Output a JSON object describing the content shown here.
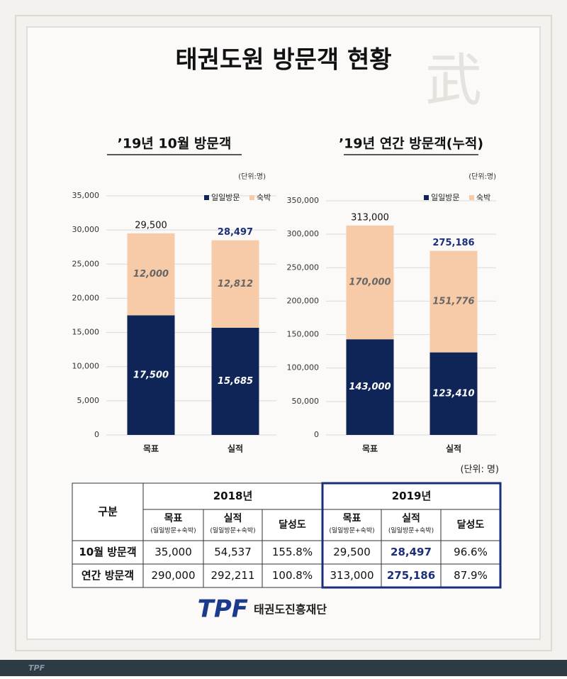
{
  "title": "태권도원 방문객 현황",
  "chart_data": [
    {
      "type": "bar",
      "stacked": true,
      "title": "’19년 10월 방문객",
      "unit": "(단위:명)",
      "categories": [
        "목표",
        "실적"
      ],
      "series": [
        {
          "name": "일일방문",
          "color": "#0f2557",
          "values": [
            17500,
            15685
          ],
          "value_labels": [
            "17,500",
            "15,685"
          ]
        },
        {
          "name": "숙박",
          "color": "#f7caa8",
          "values": [
            12000,
            12812
          ],
          "value_labels": [
            "12,000",
            "12,812"
          ]
        }
      ],
      "totals": [
        29500,
        28497
      ],
      "total_labels": [
        "29,500",
        "28,497"
      ],
      "ylim": [
        0,
        35000
      ],
      "yticks": [
        0,
        {
          "value": 5000,
          "label": "5,000"
        },
        {
          "value": 10000,
          "label": "10,000"
        },
        {
          "value": 15000,
          "label": "15,000"
        },
        {
          "value": 20000,
          "label": "20,000"
        },
        {
          "value": 25000,
          "label": "25,000"
        },
        {
          "value": 30000,
          "label": "30,000"
        },
        {
          "value": 35000,
          "label": "35,000"
        }
      ],
      "grid": true,
      "legend": "top-right"
    },
    {
      "type": "bar",
      "stacked": true,
      "title": "’19년 연간 방문객(누적)",
      "unit": "(단위:명)",
      "categories": [
        "목표",
        "실적"
      ],
      "series": [
        {
          "name": "일일방문",
          "color": "#0f2557",
          "values": [
            143000,
            123410
          ],
          "value_labels": [
            "143,000",
            "123,410"
          ]
        },
        {
          "name": "숙박",
          "color": "#f7caa8",
          "values": [
            170000,
            151776
          ],
          "value_labels": [
            "170,000",
            "151,776"
          ]
        }
      ],
      "totals": [
        313000,
        275186
      ],
      "total_labels": [
        "313,000",
        "275,186"
      ],
      "ylim": [
        0,
        350000
      ],
      "yticks": [
        0,
        {
          "value": 50000,
          "label": "50,000"
        },
        {
          "value": 100000,
          "label": "100,000"
        },
        {
          "value": 150000,
          "label": "150,000"
        },
        {
          "value": 200000,
          "label": "200,000"
        },
        {
          "value": 250000,
          "label": "250,000"
        },
        {
          "value": 300000,
          "label": "300,000"
        },
        {
          "value": 350000,
          "label": "350,000"
        }
      ],
      "grid": true,
      "legend": "top-right"
    }
  ],
  "table": {
    "unit": "(단위: 명)",
    "corner": "구분",
    "years": [
      "2018년",
      "2019년"
    ],
    "columns": [
      {
        "name": "목표",
        "note": "(일일방문+숙박)"
      },
      {
        "name": "실적",
        "note": "(일일방문+숙박)"
      },
      {
        "name": "달성도"
      },
      {
        "name": "목표",
        "note": "(일일방문+숙박)"
      },
      {
        "name": "실적",
        "note": "(일일방문+숙박)"
      },
      {
        "name": "달성도"
      }
    ],
    "rows": [
      [
        "10월 방문객",
        "35,000",
        "54,537",
        "155.8%",
        "29,500",
        "28,497",
        "96.6%"
      ],
      [
        "연간 방문객",
        "290,000",
        "292,211",
        "100.8%",
        "313,000",
        "275,186",
        "87.9%"
      ]
    ]
  },
  "footer": {
    "logo": "TPF",
    "org": "태권도진흥재단"
  }
}
